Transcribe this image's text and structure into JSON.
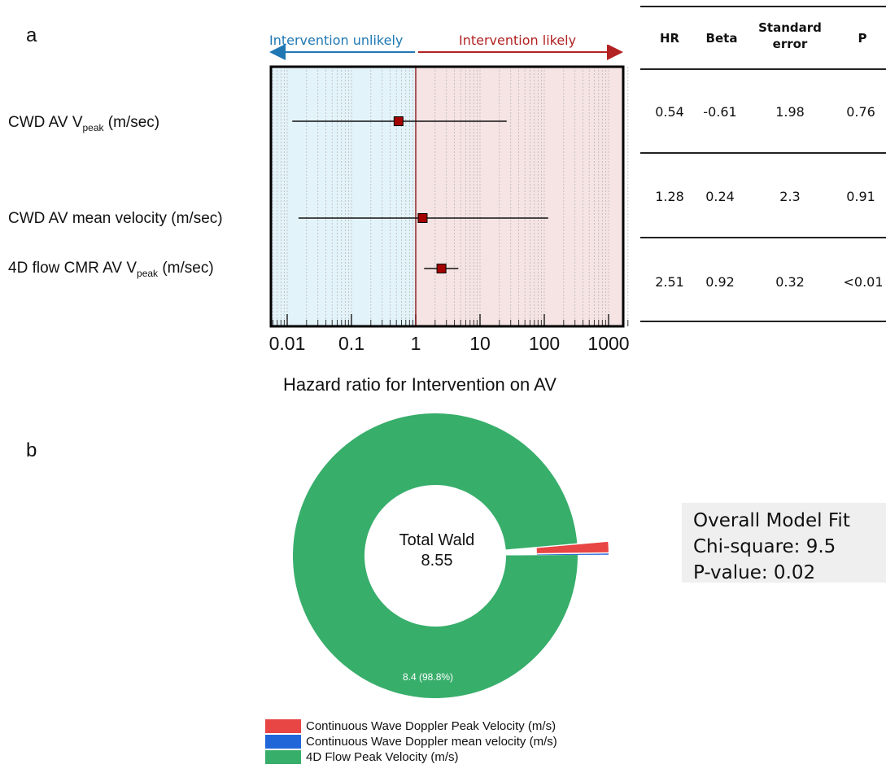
{
  "panels": {
    "a": "a",
    "b": "b"
  },
  "forest_header": {
    "left": "Intervention unlikely",
    "right": "Intervention likely"
  },
  "rows": [
    {
      "label_main": "CWD AV V",
      "label_sub": "peak",
      "label_suffix": " (m/sec)"
    },
    {
      "label_main": "CWD AV mean velocity (m/sec)",
      "label_sub": "",
      "label_suffix": ""
    },
    {
      "label_main": "4D flow CMR AV V",
      "label_sub": "peak",
      "label_suffix": " (m/sec)"
    }
  ],
  "table": {
    "headers": [
      "HR",
      "Beta",
      "Standard error",
      "P"
    ],
    "rows": [
      [
        "0.54",
        "-0.61",
        "1.98",
        "0.76"
      ],
      [
        "1.28",
        "0.24",
        "2.3",
        "0.91"
      ],
      [
        "2.51",
        "0.92",
        "0.32",
        "<0.01"
      ]
    ]
  },
  "model_fit": {
    "line1": "Overall Model Fit",
    "line2": "Chi-square: 9.5",
    "line3": "P-value: 0.02"
  },
  "donut_center": {
    "line1": "Total Wald",
    "line2": "8.55"
  },
  "colors": {
    "unlikely_bg": "#e3f3fa",
    "likely_bg": "#f6e3e3",
    "unlikely_arrow": "#1f77b4",
    "likely_arrow": "#b22222",
    "marker": "#a30000",
    "cwd_peak": "#e84545",
    "cwd_mean": "#2166d9",
    "flow4d": "#38ae6b"
  },
  "chart_data": [
    {
      "type": "scatter",
      "subtype": "forest",
      "xlabel": "Hazard ratio for Intervention on AV",
      "xscale": "log",
      "xlim": [
        0.006,
        2000
      ],
      "reference_line": 1,
      "xticks": [
        0.01,
        0.1,
        1,
        10,
        100,
        1000
      ],
      "xtick_labels": [
        "0.01",
        "0.1",
        "1",
        "10",
        "100",
        "1000"
      ],
      "points": [
        {
          "hr": 0.54,
          "ci_low": 0.012,
          "ci_high": 26
        },
        {
          "hr": 1.28,
          "ci_low": 0.015,
          "ci_high": 115
        },
        {
          "hr": 2.51,
          "ci_low": 1.35,
          "ci_high": 4.6
        }
      ]
    },
    {
      "type": "pie",
      "subtype": "donut",
      "total": 8.55,
      "slices": [
        {
          "label": "Continuous Wave Doppler Peak Velocity (m/s)",
          "value": 0.1,
          "color": "#e84545",
          "exploded": true
        },
        {
          "label": "Continuous Wave Doppler mean velocity (m/s)",
          "value": 0.01,
          "color": "#2166d9",
          "exploded": true
        },
        {
          "label": "4D Flow Peak Velocity (m/s)",
          "value": 8.4,
          "color": "#38ae6b",
          "exploded": false
        }
      ],
      "annotation": "8.4 (98.8%)",
      "legend": [
        "Continuous Wave Doppler Peak Velocity (m/s)",
        "Continuous Wave Doppler mean velocity (m/s)",
        "4D Flow Peak Velocity (m/s)"
      ],
      "legend_position": "bottom"
    }
  ]
}
